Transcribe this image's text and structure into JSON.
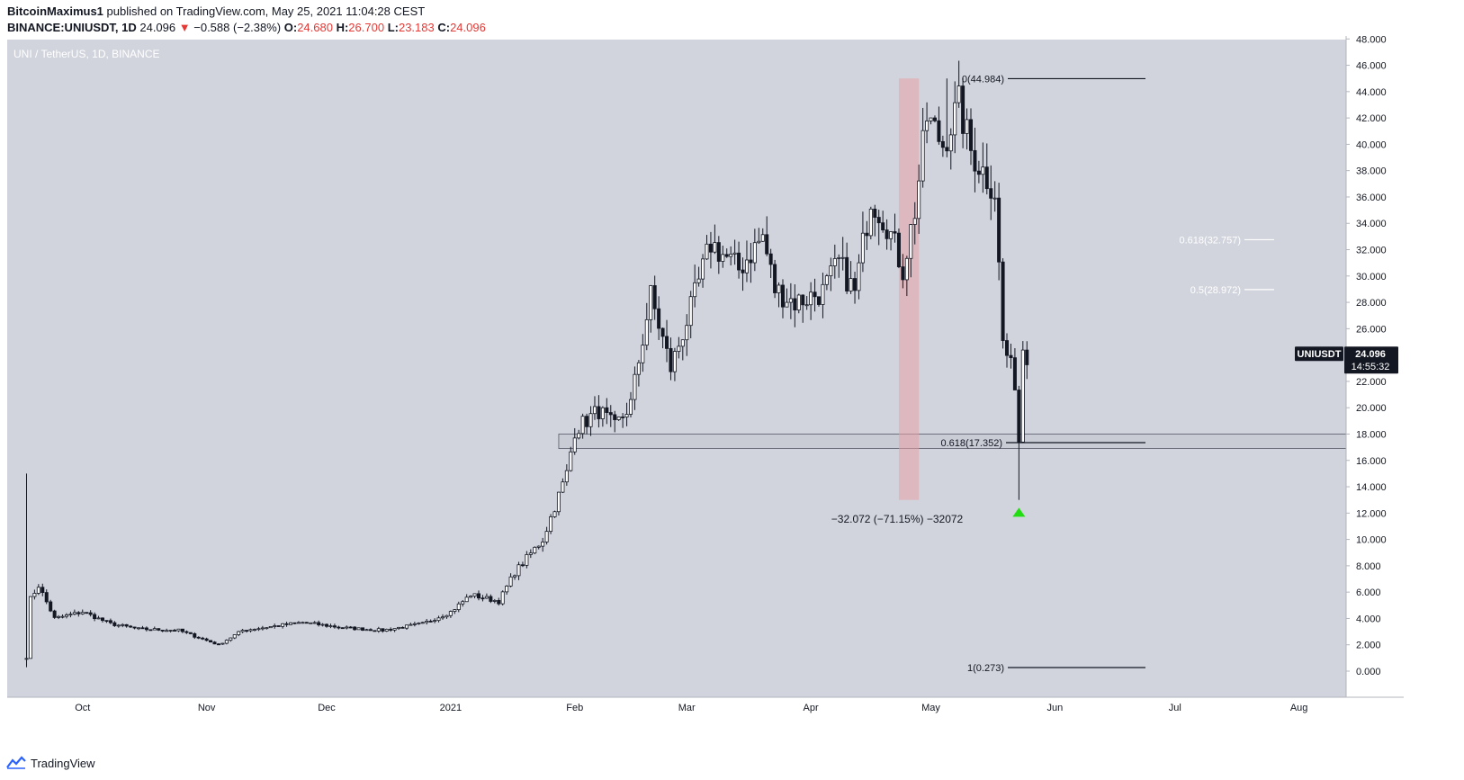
{
  "header": {
    "author": "BitcoinMaximus1",
    "published_text": "published on TradingView.com, May 25, 2021 11:04:28 CEST",
    "symbol": "BINANCE:UNIUSDT, 1D",
    "last": "24.096",
    "arrow": "▼",
    "change": "−0.588 (−2.38%)",
    "o_label": "O:",
    "o_val": "24.680",
    "h_label": "H:",
    "h_val": "26.700",
    "l_label": "L:",
    "l_val": "23.183",
    "c_label": "C:",
    "c_val": "24.096"
  },
  "footer": {
    "brand": "TradingView"
  },
  "colors": {
    "background": "#d1d4dc",
    "candle": "#131722",
    "accent_down": "#e53935",
    "marker": "#22dd11",
    "highlight": "#e8a0a6"
  },
  "chart_data": {
    "type": "candlestick",
    "title": "UNI / TetherUS, 1D, BINANCE",
    "currency": "USDT",
    "ylim": [
      -1.5,
      48
    ],
    "y_ticks": [
      "0.000",
      "2.000",
      "4.000",
      "6.000",
      "8.000",
      "10.000",
      "12.000",
      "14.000",
      "16.000",
      "18.000",
      "20.000",
      "22.000",
      "24.000",
      "26.000",
      "28.000",
      "30.000",
      "32.000",
      "34.000",
      "36.000",
      "38.000",
      "40.000",
      "42.000",
      "44.000",
      "46.000",
      "48.000"
    ],
    "x_ticks": [
      "Oct",
      "Nov",
      "Dec",
      "2021",
      "Feb",
      "Mar",
      "Apr",
      "May",
      "Jun",
      "Jul",
      "Aug"
    ],
    "start_date": "2020-09-17",
    "last_date": "2021-05-25",
    "anchors": [
      {
        "date": "2020-09-17",
        "price": 1.0
      },
      {
        "date": "2020-09-18",
        "price": 5.5
      },
      {
        "date": "2020-09-20",
        "price": 6.5
      },
      {
        "date": "2020-09-24",
        "price": 4.0
      },
      {
        "date": "2020-10-01",
        "price": 4.5
      },
      {
        "date": "2020-10-08",
        "price": 3.6
      },
      {
        "date": "2020-10-15",
        "price": 3.2
      },
      {
        "date": "2020-10-25",
        "price": 3.1
      },
      {
        "date": "2020-11-04",
        "price": 2.0
      },
      {
        "date": "2020-11-10",
        "price": 3.1
      },
      {
        "date": "2020-11-25",
        "price": 3.7
      },
      {
        "date": "2020-12-05",
        "price": 3.3
      },
      {
        "date": "2020-12-15",
        "price": 3.1
      },
      {
        "date": "2020-12-25",
        "price": 3.6
      },
      {
        "date": "2021-01-01",
        "price": 4.5
      },
      {
        "date": "2021-01-06",
        "price": 5.8
      },
      {
        "date": "2021-01-13",
        "price": 5.3
      },
      {
        "date": "2021-01-17",
        "price": 7.5
      },
      {
        "date": "2021-01-24",
        "price": 10.0
      },
      {
        "date": "2021-01-30",
        "price": 15.0
      },
      {
        "date": "2021-02-01",
        "price": 18.3
      },
      {
        "date": "2021-02-07",
        "price": 19.8
      },
      {
        "date": "2021-02-11",
        "price": 18.5
      },
      {
        "date": "2021-02-15",
        "price": 20.3
      },
      {
        "date": "2021-02-20",
        "price": 28.5
      },
      {
        "date": "2021-02-25",
        "price": 23.0
      },
      {
        "date": "2021-03-02",
        "price": 27.5
      },
      {
        "date": "2021-03-07",
        "price": 32.5
      },
      {
        "date": "2021-03-14",
        "price": 30.5
      },
      {
        "date": "2021-03-20",
        "price": 33.0
      },
      {
        "date": "2021-03-23",
        "price": 29.0
      },
      {
        "date": "2021-03-28",
        "price": 28.0
      },
      {
        "date": "2021-04-04",
        "price": 28.8
      },
      {
        "date": "2021-04-08",
        "price": 31.0
      },
      {
        "date": "2021-04-12",
        "price": 28.7
      },
      {
        "date": "2021-04-16",
        "price": 36.0
      },
      {
        "date": "2021-04-20",
        "price": 34.0
      },
      {
        "date": "2021-04-24",
        "price": 30.5
      },
      {
        "date": "2021-04-27",
        "price": 35.0
      },
      {
        "date": "2021-04-30",
        "price": 42.0
      },
      {
        "date": "2021-05-04",
        "price": 40.0
      },
      {
        "date": "2021-05-08",
        "price": 43.0
      },
      {
        "date": "2021-05-11",
        "price": 39.5
      },
      {
        "date": "2021-05-14",
        "price": 38.0
      },
      {
        "date": "2021-05-17",
        "price": 36.5
      },
      {
        "date": "2021-05-19",
        "price": 25.0
      },
      {
        "date": "2021-05-22",
        "price": 22.0
      },
      {
        "date": "2021-05-23",
        "price": 17.5
      },
      {
        "date": "2021-05-24",
        "price": 24.7
      },
      {
        "date": "2021-05-25",
        "price": 24.096
      }
    ],
    "fib_upper": [
      {
        "label": "0(44.984)",
        "value": 44.984
      },
      {
        "label": "1(0.273)",
        "value": 0.273
      }
    ],
    "fib_lower": [
      {
        "label": "0.618(32.757)",
        "value": 32.757
      },
      {
        "label": "0.5(28.972)",
        "value": 28.972
      }
    ],
    "fib_level_618": {
      "label": "0.618(17.352)",
      "value": 17.352
    },
    "support_zone": {
      "low": 16.9,
      "high": 18.0
    },
    "highlight_range": {
      "start": "2021-04-23",
      "end": "2021-04-28",
      "low": 13.0,
      "high": 45.0
    },
    "measure_label": "−32.072 (−71.15%) −32072",
    "marker": {
      "date": "2021-05-23",
      "price": 12.0
    },
    "price_tag": {
      "symbol": "UNIUSDT",
      "value": "24.096",
      "countdown": "14:55:32"
    }
  }
}
